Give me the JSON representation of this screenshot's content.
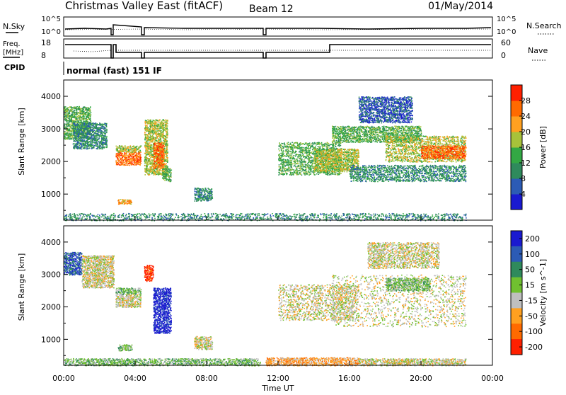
{
  "header": {
    "station": "Christmas Valley East (fitACF)",
    "beam": "Beam 12",
    "date": "01/May/2014"
  },
  "panels": {
    "noise": {
      "left_label": "N.Sky",
      "left_ticks": [
        "10^5",
        "10^0"
      ],
      "right_ticks": [
        "10^5",
        "10^0"
      ],
      "right_label": "N.Search"
    },
    "freq": {
      "left_label_1": "Freq.",
      "left_label_2": "[MHz]",
      "left_ticks": [
        "18",
        "8"
      ],
      "right_ticks": [
        "60",
        "0"
      ],
      "right_label": "Nave"
    },
    "cpid": {
      "label": "CPID",
      "text": "normal (fast) 151 IF"
    }
  },
  "chart_data": [
    {
      "type": "heatmap",
      "name": "power",
      "ylabel": "Slant Range [km]",
      "xlabel": "Time UT",
      "ylim": [
        200,
        4500
      ],
      "xlim": [
        0,
        24
      ],
      "xtick_labels": [
        "00:00",
        "04:00",
        "08:00",
        "12:00",
        "16:00",
        "20:00",
        "00:00"
      ],
      "ytick_labels": [
        "1000",
        "2000",
        "3000",
        "4000"
      ],
      "colorbar": {
        "label": "Power [dB]",
        "ticks": [
          "4",
          "8",
          "12",
          "16",
          "20",
          "24",
          "28"
        ],
        "colors": [
          "#1a1ad0",
          "#2c5bb5",
          "#2f8a5c",
          "#33a844",
          "#a8c23a",
          "#ffa020",
          "#ff6a00",
          "#ff2000"
        ]
      },
      "regions": [
        {
          "t0": 0.0,
          "t1": 1.5,
          "r0": 2700,
          "r1": 3700,
          "level": 3
        },
        {
          "t0": 0.5,
          "t1": 2.4,
          "r0": 2400,
          "r1": 3200,
          "level": 2
        },
        {
          "t0": 2.9,
          "t1": 4.3,
          "r0": 1900,
          "r1": 2300,
          "level": 6
        },
        {
          "t0": 2.9,
          "t1": 4.3,
          "r0": 2300,
          "r1": 2500,
          "level": 4
        },
        {
          "t0": 4.5,
          "t1": 5.8,
          "r0": 1600,
          "r1": 3300,
          "level": 4
        },
        {
          "t0": 5.0,
          "t1": 5.6,
          "r0": 1800,
          "r1": 2600,
          "level": 6
        },
        {
          "t0": 5.5,
          "t1": 6.0,
          "r0": 1400,
          "r1": 1800,
          "level": 3
        },
        {
          "t0": 3.0,
          "t1": 3.8,
          "r0": 700,
          "r1": 850,
          "level": 5
        },
        {
          "t0": 7.3,
          "t1": 8.3,
          "r0": 800,
          "r1": 1200,
          "level": 2
        },
        {
          "t0": 12.0,
          "t1": 15.5,
          "r0": 1600,
          "r1": 2600,
          "level": 3
        },
        {
          "t0": 14.0,
          "t1": 16.5,
          "r0": 1700,
          "r1": 2400,
          "level": 4
        },
        {
          "t0": 15.0,
          "t1": 20.0,
          "r0": 2600,
          "r1": 3100,
          "level": 3
        },
        {
          "t0": 16.0,
          "t1": 22.5,
          "r0": 1400,
          "r1": 1900,
          "level": 2
        },
        {
          "t0": 18.0,
          "t1": 22.5,
          "r0": 2000,
          "r1": 2800,
          "level": 4
        },
        {
          "t0": 20.0,
          "t1": 22.5,
          "r0": 2100,
          "r1": 2500,
          "level": 6
        },
        {
          "t0": 16.5,
          "t1": 19.5,
          "r0": 3200,
          "r1": 4000,
          "level": 1
        },
        {
          "t0": 0.0,
          "t1": 22.5,
          "r0": 200,
          "r1": 420,
          "level": 2
        }
      ]
    },
    {
      "type": "heatmap",
      "name": "velocity",
      "ylabel": "Slant Range [km]",
      "xlabel": "Time UT",
      "ylim": [
        200,
        4500
      ],
      "xlim": [
        0,
        24
      ],
      "xtick_labels": [
        "00:00",
        "04:00",
        "08:00",
        "12:00",
        "16:00",
        "20:00",
        "00:00"
      ],
      "ytick_labels": [
        "1000",
        "2000",
        "3000",
        "4000"
      ],
      "colorbar": {
        "label": "Velocity [m s^-1]",
        "ticks": [
          "200",
          "100",
          "50",
          "15",
          "-15",
          "-50",
          "-100",
          "-200"
        ],
        "colors": [
          "#1a1ad0",
          "#2c5bb5",
          "#2f8a5c",
          "#70c030",
          "#bfbfbf",
          "#ffa020",
          "#ff6a00",
          "#ff2000"
        ]
      },
      "regions": [
        {
          "t0": 0.0,
          "t1": 1.0,
          "r0": 3000,
          "r1": 3700,
          "level": 1
        },
        {
          "t0": 1.0,
          "t1": 2.8,
          "r0": 2600,
          "r1": 3600,
          "level": 4
        },
        {
          "t0": 2.9,
          "t1": 4.3,
          "r0": 2000,
          "r1": 2400,
          "level": 4
        },
        {
          "t0": 2.9,
          "t1": 4.3,
          "r0": 2400,
          "r1": 2600,
          "level": 3
        },
        {
          "t0": 4.5,
          "t1": 5.0,
          "r0": 2800,
          "r1": 3300,
          "level": 7
        },
        {
          "t0": 5.0,
          "t1": 6.0,
          "r0": 1200,
          "r1": 2600,
          "level": 0
        },
        {
          "t0": 3.0,
          "t1": 3.8,
          "r0": 650,
          "r1": 850,
          "level": 3
        },
        {
          "t0": 7.3,
          "t1": 8.3,
          "r0": 700,
          "r1": 1100,
          "level": 4
        },
        {
          "t0": 12.0,
          "t1": 16.5,
          "r0": 1600,
          "r1": 2700,
          "level": 4
        },
        {
          "t0": 15.0,
          "t1": 22.5,
          "r0": 1400,
          "r1": 3000,
          "level": 4
        },
        {
          "t0": 18.0,
          "t1": 20.5,
          "r0": 2500,
          "r1": 2900,
          "level": 3
        },
        {
          "t0": 17.0,
          "t1": 21.0,
          "r0": 3200,
          "r1": 4000,
          "level": 4
        },
        {
          "t0": 0.0,
          "t1": 11.0,
          "r0": 200,
          "r1": 420,
          "level": 3
        },
        {
          "t0": 11.3,
          "t1": 16.5,
          "r0": 200,
          "r1": 450,
          "level": 5
        },
        {
          "t0": 16.5,
          "t1": 22.5,
          "r0": 200,
          "r1": 420,
          "level": 4
        }
      ]
    }
  ]
}
